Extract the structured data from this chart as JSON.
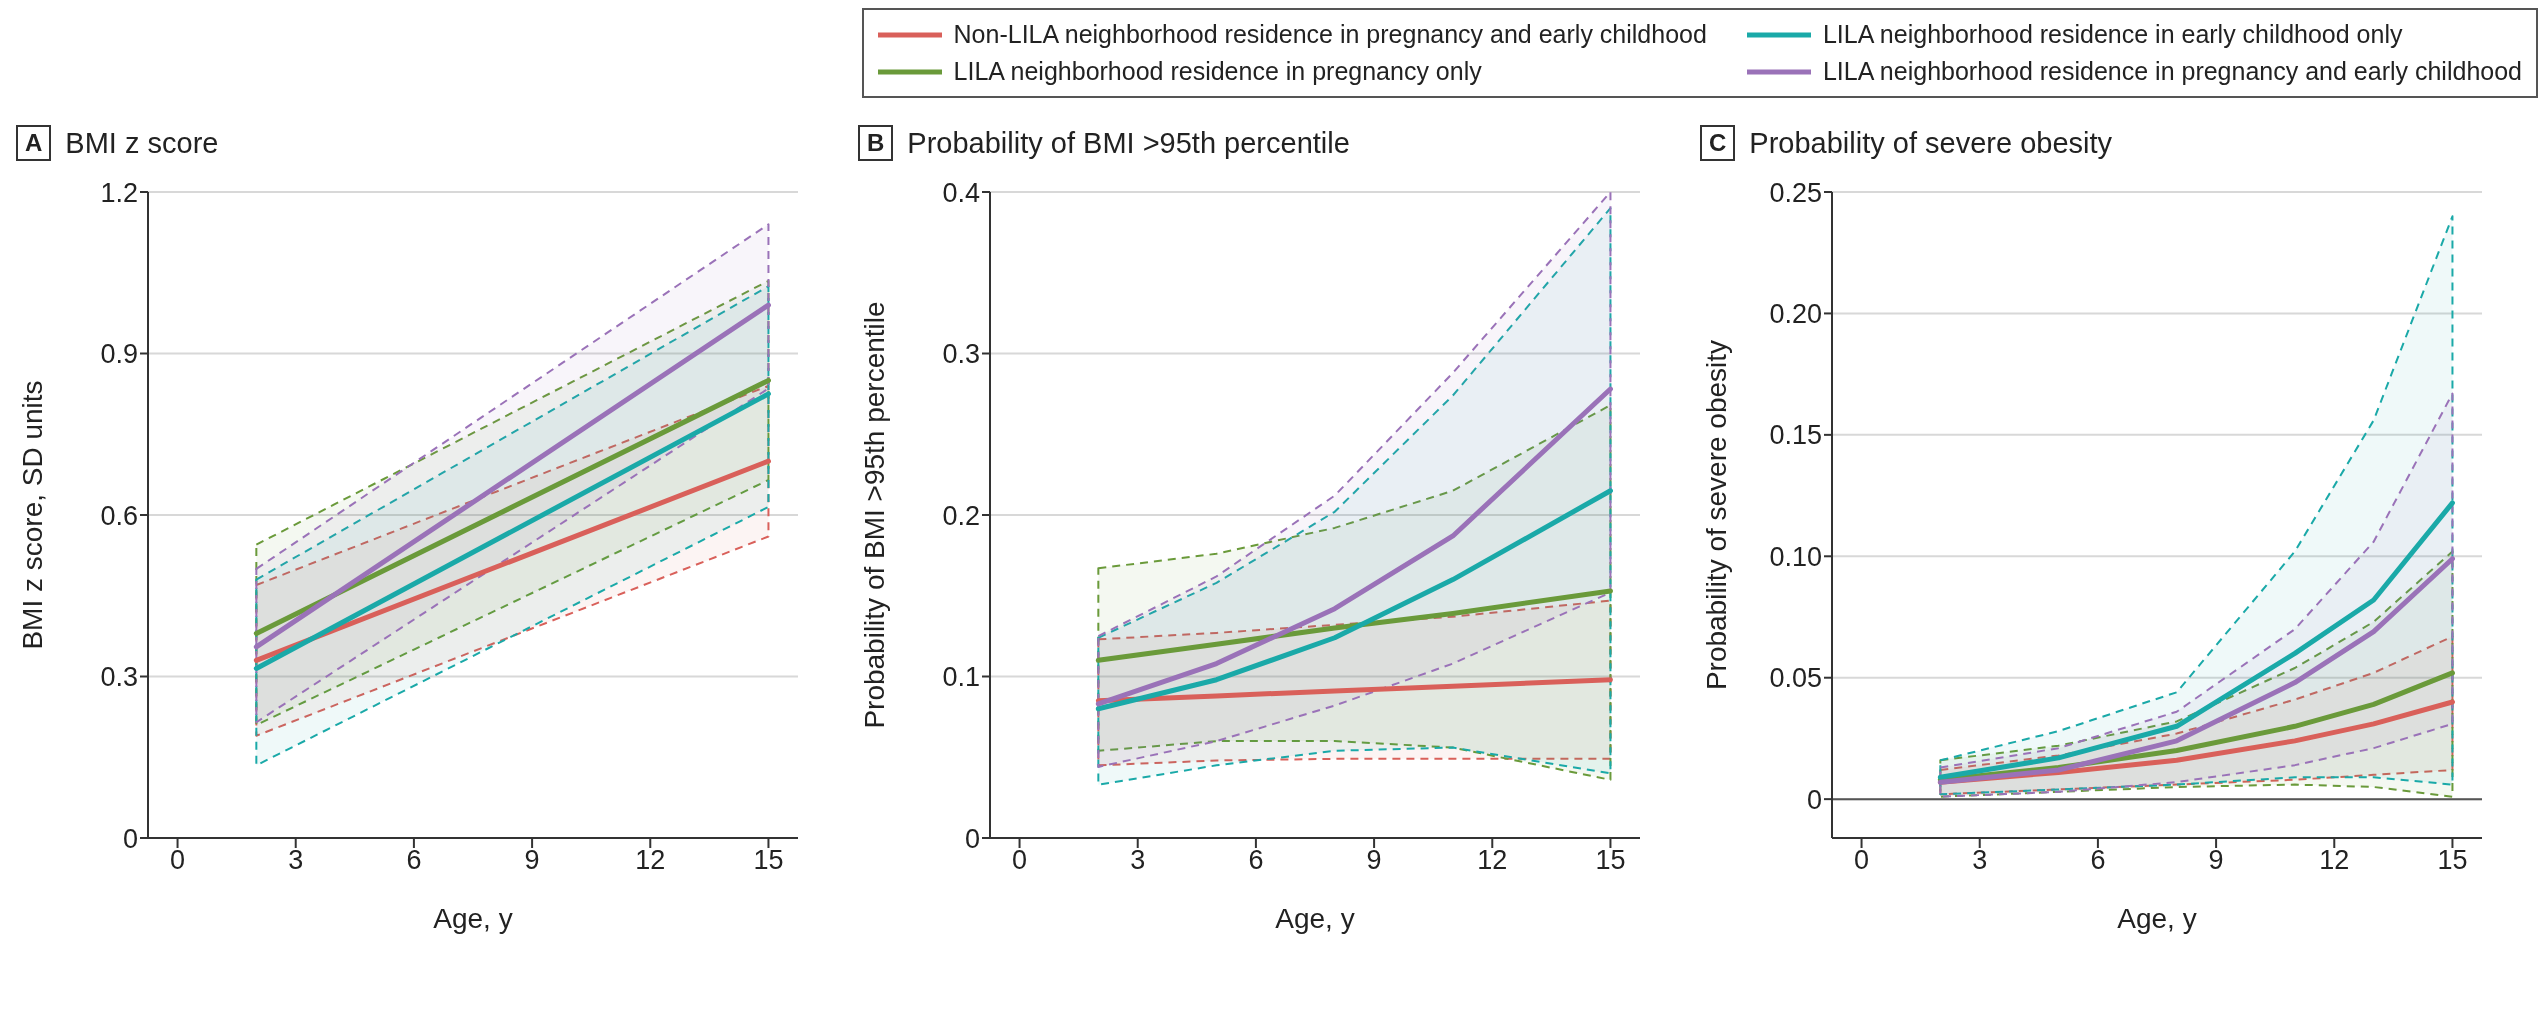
{
  "chart_data": [
    {
      "type": "line",
      "title": "BMI z score",
      "annotations": [
        "A"
      ],
      "xlabel": "Age, y",
      "ylabel": "BMI z score, SD units",
      "x": [
        2,
        15
      ],
      "xlim": [
        -0.75,
        15.75
      ],
      "xticks": [
        0,
        3,
        6,
        9,
        12,
        15
      ],
      "ylim": [
        0,
        1.2
      ],
      "yticks": [
        0,
        0.3,
        0.6,
        0.9,
        1.2
      ],
      "grid": "y",
      "legend": "top",
      "series": [
        {
          "name": "Non-LILA neighborhood residence in pregnancy and early childhood",
          "color": "#d9605a",
          "values": [
            0.33,
            0.7
          ],
          "lower": [
            0.19,
            0.56
          ],
          "upper": [
            0.47,
            0.84
          ]
        },
        {
          "name": "LILA neighborhood residence in pregnancy only",
          "color": "#6a9a3a",
          "values": [
            0.38,
            0.85
          ],
          "lower": [
            0.21,
            0.665
          ],
          "upper": [
            0.545,
            1.035
          ]
        },
        {
          "name": "LILA neighborhood residence in early childhood only",
          "color": "#1aa9a8",
          "values": [
            0.315,
            0.825
          ],
          "lower": [
            0.135,
            0.615
          ],
          "upper": [
            0.48,
            1.025
          ]
        },
        {
          "name": "LILA neighborhood residence in pregnancy and early childhood",
          "color": "#9a72b8",
          "values": [
            0.355,
            0.99
          ],
          "lower": [
            0.215,
            0.835
          ],
          "upper": [
            0.5,
            1.14
          ]
        }
      ]
    },
    {
      "type": "line",
      "title": "Probability of BMI >95th percentile",
      "annotations": [
        "B"
      ],
      "xlabel": "Age, y",
      "ylabel": "Probability of BMI >95th percentile",
      "x": [
        2,
        5,
        8,
        11,
        15
      ],
      "xlim": [
        -0.75,
        15.75
      ],
      "xticks": [
        0,
        3,
        6,
        9,
        12,
        15
      ],
      "ylim": [
        0,
        0.4
      ],
      "yticks": [
        0,
        0.1,
        0.2,
        0.3,
        0.4
      ],
      "grid": "y",
      "series": [
        {
          "color": "#d9605a",
          "values": [
            0.085,
            0.088,
            0.091,
            0.094,
            0.098
          ],
          "lower": [
            0.045,
            0.048,
            0.049,
            0.049,
            0.049
          ],
          "upper": [
            0.123,
            0.127,
            0.132,
            0.137,
            0.147
          ]
        },
        {
          "color": "#6a9a3a",
          "values": [
            0.11,
            0.12,
            0.13,
            0.139,
            0.153
          ],
          "lower": [
            0.054,
            0.06,
            0.06,
            0.056,
            0.036
          ],
          "upper": [
            0.167,
            0.176,
            0.192,
            0.215,
            0.268
          ]
        },
        {
          "color": "#1aa9a8",
          "values": [
            0.08,
            0.098,
            0.124,
            0.16,
            0.215
          ],
          "lower": [
            0.033,
            0.045,
            0.054,
            0.056,
            0.04
          ],
          "upper": [
            0.124,
            0.158,
            0.202,
            0.274,
            0.39
          ]
        },
        {
          "color": "#9a72b8",
          "values": [
            0.083,
            0.108,
            0.142,
            0.187,
            0.278
          ],
          "lower": [
            0.044,
            0.06,
            0.082,
            0.108,
            0.152
          ],
          "upper": [
            0.125,
            0.162,
            0.212,
            0.288,
            0.4
          ]
        }
      ]
    },
    {
      "type": "line",
      "title": "Probability of severe obesity",
      "annotations": [
        "C"
      ],
      "xlabel": "Age, y",
      "ylabel": "Probability of severe obesity",
      "x": [
        2,
        5,
        8,
        11,
        13,
        15
      ],
      "xlim": [
        -0.75,
        15.75
      ],
      "xticks": [
        0,
        3,
        6,
        9,
        12,
        15
      ],
      "ylim": [
        -0.016,
        0.25
      ],
      "yticks": [
        0,
        {
          "value": 0.05,
          "label": "0.05"
        },
        {
          "value": 0.1,
          "label": "0.10"
        },
        {
          "value": 0.15,
          "label": "0.15"
        },
        {
          "value": 0.2,
          "label": "0.20"
        },
        {
          "value": 0.25,
          "label": "0.25"
        }
      ],
      "grid": "y",
      "ref_lines": [
        {
          "axis": "y",
          "value": 0,
          "color": "#555555"
        }
      ],
      "series": [
        {
          "color": "#d9605a",
          "values": [
            0.007,
            0.011,
            0.016,
            0.024,
            0.031,
            0.04
          ],
          "lower": [
            0.002,
            0.004,
            0.006,
            0.008,
            0.01,
            0.012
          ],
          "upper": [
            0.012,
            0.018,
            0.027,
            0.041,
            0.052,
            0.067
          ]
        },
        {
          "color": "#6a9a3a",
          "values": [
            0.008,
            0.013,
            0.02,
            0.03,
            0.039,
            0.052
          ],
          "lower": [
            0.001,
            0.003,
            0.005,
            0.006,
            0.005,
            0.001
          ],
          "upper": [
            0.016,
            0.022,
            0.032,
            0.054,
            0.073,
            0.102
          ]
        },
        {
          "color": "#1aa9a8",
          "values": [
            0.009,
            0.017,
            0.03,
            0.06,
            0.082,
            0.122
          ],
          "lower": [
            0.002,
            0.004,
            0.006,
            0.009,
            0.009,
            0.006
          ],
          "upper": [
            0.016,
            0.028,
            0.044,
            0.102,
            0.156,
            0.24
          ]
        },
        {
          "color": "#9a72b8",
          "values": [
            0.007,
            0.012,
            0.024,
            0.048,
            0.069,
            0.099
          ],
          "lower": [
            0.001,
            0.003,
            0.007,
            0.014,
            0.021,
            0.031
          ],
          "upper": [
            0.013,
            0.021,
            0.036,
            0.07,
            0.106,
            0.167
          ]
        }
      ]
    }
  ]
}
